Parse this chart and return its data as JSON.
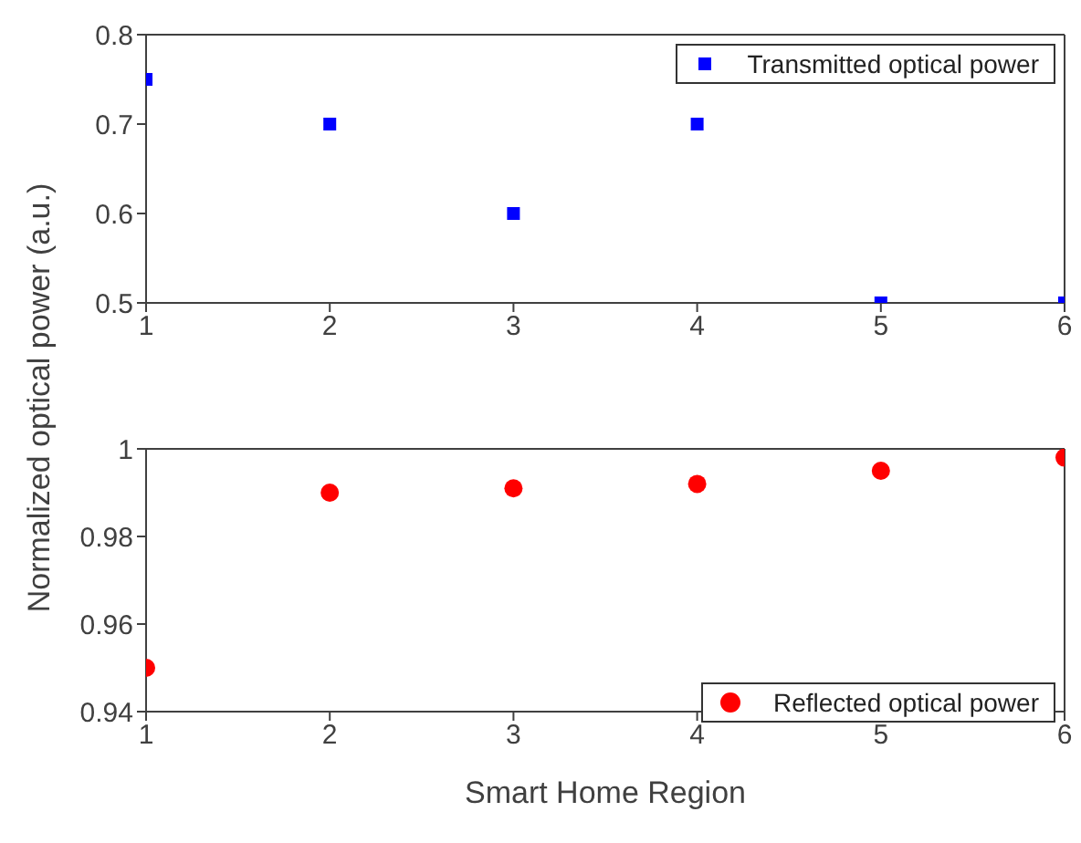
{
  "chart_data": [
    {
      "type": "scatter",
      "ylabel": "Normalized optical power (a.u.)",
      "x": [
        1,
        2,
        3,
        4,
        5,
        6
      ],
      "xlim": [
        1,
        6
      ],
      "xticks": [
        1,
        2,
        3,
        4,
        5,
        6
      ],
      "ylim": [
        0.5,
        0.8
      ],
      "yticks": [
        0.5,
        0.6,
        0.7,
        0.8
      ],
      "marker": "square",
      "legend": "top right",
      "series": [
        {
          "name": "Transmitted optical power",
          "color": "#0000ff",
          "values": [
            0.75,
            0.7,
            0.6,
            0.7,
            0.5,
            0.5
          ]
        }
      ]
    },
    {
      "type": "scatter",
      "xlabel": "Smart Home Region",
      "x": [
        1,
        2,
        3,
        4,
        5,
        6
      ],
      "xlim": [
        1,
        6
      ],
      "xticks": [
        1,
        2,
        3,
        4,
        5,
        6
      ],
      "ylim": [
        0.94,
        1
      ],
      "yticks": [
        0.94,
        0.96,
        0.98,
        1
      ],
      "marker": "circle",
      "legend": "bottom right",
      "series": [
        {
          "name": "Reflected optical power",
          "color": "#ff0000",
          "values": [
            0.95,
            0.99,
            0.991,
            0.992,
            0.995,
            0.998
          ]
        }
      ]
    }
  ]
}
